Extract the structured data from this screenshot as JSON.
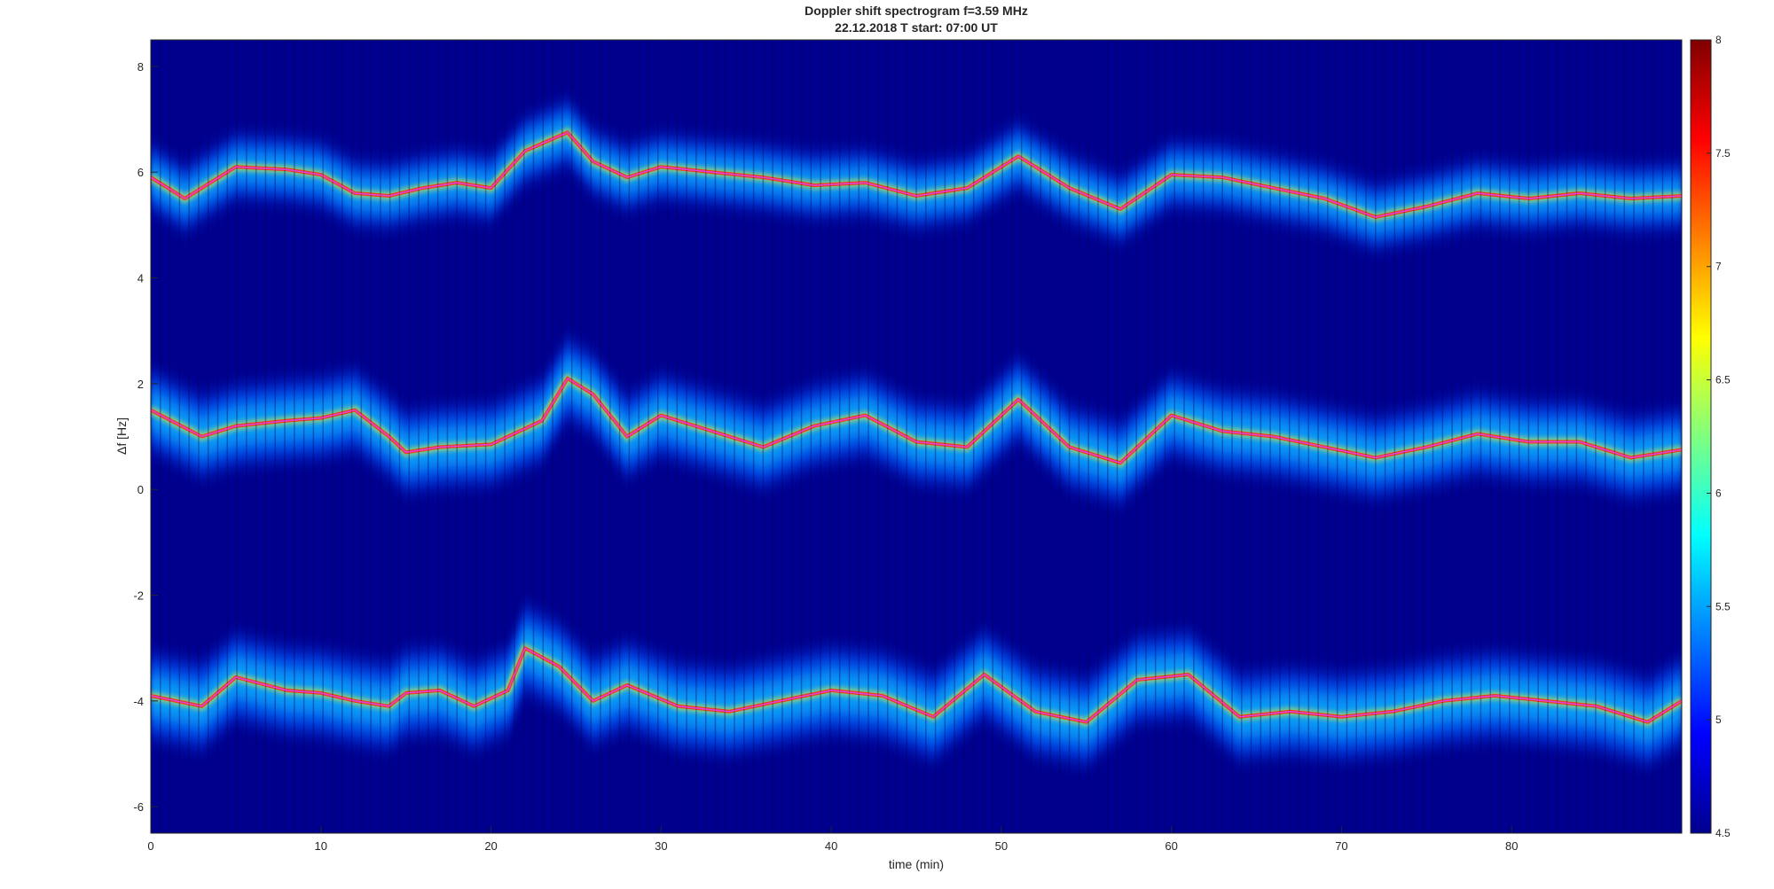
{
  "chart_data": {
    "type": "heatmap",
    "title": "Doppler shift spectrogram f=3.59 MHz",
    "subtitle": "22.12.2018   T start: 07:00 UT",
    "xlabel": "time (min)",
    "ylabel": "Δf [Hz]",
    "xlim": [
      0,
      90
    ],
    "ylim": [
      -6.5,
      8.5
    ],
    "xticks": [
      0,
      10,
      20,
      30,
      40,
      50,
      60,
      70,
      80
    ],
    "yticks": [
      8,
      6,
      4,
      2,
      0,
      -2,
      -4,
      -6
    ],
    "colorbar": {
      "colormap": "jet",
      "clim": [
        4.5,
        8
      ],
      "ticks": [
        8,
        7.5,
        7,
        6.5,
        6,
        5.5,
        5,
        4.5
      ],
      "placement": "right"
    },
    "grid": false,
    "series": [
      {
        "role": "upper-trace",
        "x": [
          0,
          2,
          5,
          8,
          10,
          12,
          14,
          16,
          18,
          20,
          22,
          24.5,
          26,
          28,
          30,
          33,
          36,
          39,
          42,
          45,
          48,
          51,
          54,
          57,
          60,
          63,
          66,
          69,
          72,
          75,
          78,
          81,
          84,
          87,
          90
        ],
        "y": [
          5.9,
          5.5,
          6.1,
          6.05,
          5.95,
          5.6,
          5.55,
          5.7,
          5.8,
          5.7,
          6.4,
          6.75,
          6.2,
          5.9,
          6.1,
          6.0,
          5.9,
          5.75,
          5.8,
          5.55,
          5.7,
          6.3,
          5.7,
          5.3,
          5.95,
          5.9,
          5.7,
          5.5,
          5.15,
          5.35,
          5.6,
          5.5,
          5.6,
          5.5,
          5.55
        ]
      },
      {
        "role": "middle-trace",
        "x": [
          0,
          3,
          5,
          8,
          10,
          12,
          14,
          15,
          17,
          20,
          23,
          24.5,
          26,
          28,
          30,
          33,
          36,
          39,
          42,
          45,
          48,
          51,
          54,
          57,
          60,
          63,
          66,
          69,
          72,
          75,
          78,
          81,
          84,
          87,
          90
        ],
        "y": [
          1.5,
          1.0,
          1.2,
          1.3,
          1.35,
          1.5,
          1.0,
          0.7,
          0.8,
          0.85,
          1.3,
          2.1,
          1.8,
          1.0,
          1.4,
          1.1,
          0.8,
          1.2,
          1.4,
          0.9,
          0.8,
          1.7,
          0.8,
          0.5,
          1.4,
          1.1,
          1.0,
          0.8,
          0.6,
          0.8,
          1.05,
          0.9,
          0.9,
          0.6,
          0.75
        ]
      },
      {
        "role": "lower-trace",
        "x": [
          0,
          3,
          5,
          8,
          10,
          12,
          14,
          15,
          17,
          19,
          21,
          22,
          24,
          26,
          28,
          31,
          34,
          37,
          40,
          43,
          46,
          49,
          52,
          55,
          58,
          61,
          64,
          67,
          70,
          73,
          76,
          79,
          82,
          85,
          88,
          90
        ],
        "y": [
          -3.9,
          -4.1,
          -3.55,
          -3.8,
          -3.85,
          -4.0,
          -4.1,
          -3.85,
          -3.8,
          -4.1,
          -3.8,
          -3.0,
          -3.35,
          -4.0,
          -3.7,
          -4.1,
          -4.2,
          -4.0,
          -3.8,
          -3.9,
          -4.3,
          -3.5,
          -4.2,
          -4.4,
          -3.6,
          -3.5,
          -4.3,
          -4.2,
          -4.3,
          -4.2,
          -4.0,
          -3.9,
          -4.0,
          -4.1,
          -4.4,
          -4.0
        ]
      }
    ]
  }
}
